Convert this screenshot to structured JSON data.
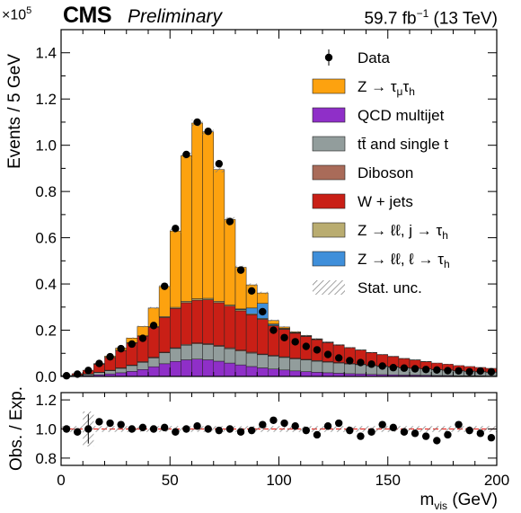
{
  "header": {
    "experiment": "CMS",
    "status": "Preliminary",
    "lumi": "59.7 fb",
    "lumi_exp": "−1",
    "energy": "(13 TeV)",
    "y_exponent_base": "×10",
    "y_exponent_power": "5"
  },
  "colors": {
    "ztt": "#fda20f",
    "qcd": "#8f2fc8",
    "ttbar": "#929d9c",
    "diboson": "#a96b59",
    "wjets": "#c91f16",
    "zll_jet": "#b9ac70",
    "zll_lep": "#3f8fda",
    "ratio_line": "#e8302a"
  },
  "chart_data": {
    "type": "bar",
    "stacked": true,
    "x_bin_width": 5,
    "x_bin_centers": [
      2.5,
      7.5,
      12.5,
      17.5,
      22.5,
      27.5,
      32.5,
      37.5,
      42.5,
      47.5,
      52.5,
      57.5,
      62.5,
      67.5,
      72.5,
      77.5,
      82.5,
      87.5,
      92.5,
      97.5,
      102.5,
      107.5,
      112.5,
      117.5,
      122.5,
      127.5,
      132.5,
      137.5,
      142.5,
      147.5,
      152.5,
      157.5,
      162.5,
      167.5,
      172.5,
      177.5,
      182.5,
      187.5,
      192.5,
      197.5
    ],
    "xlabel": "m",
    "xlabel_sub": "vis",
    "xlabel_unit": "(GeV)",
    "ylabel": "Events / 5 GeV",
    "xlim": [
      0,
      200
    ],
    "ylim": [
      0,
      1.5
    ],
    "y_scale_factor": 100000,
    "x_ticks": [
      "0",
      "50",
      "100",
      "150",
      "200"
    ],
    "x_tick_values": [
      0,
      50,
      100,
      150,
      200
    ],
    "y_ticks": [
      "0.0",
      "0.2",
      "0.4",
      "0.6",
      "0.8",
      "1.0",
      "1.2",
      "1.4"
    ],
    "y_tick_values": [
      0,
      0.2,
      0.4,
      0.6,
      0.8,
      1.0,
      1.2,
      1.4
    ],
    "series": [
      {
        "name": "QCD multijet",
        "key": "qcd",
        "values": [
          0.001,
          0.002,
          0.004,
          0.007,
          0.011,
          0.016,
          0.022,
          0.03,
          0.042,
          0.055,
          0.065,
          0.072,
          0.075,
          0.072,
          0.066,
          0.058,
          0.05,
          0.043,
          0.037,
          0.032,
          0.028,
          0.024,
          0.021,
          0.018,
          0.016,
          0.014,
          0.012,
          0.011,
          0.009,
          0.008,
          0.007,
          0.006,
          0.006,
          0.005,
          0.004,
          0.004,
          0.003,
          0.003,
          0.003,
          0.002
        ]
      },
      {
        "name": "tt̄ and single t",
        "key": "ttbar",
        "values": [
          0.001,
          0.003,
          0.006,
          0.01,
          0.014,
          0.019,
          0.025,
          0.031,
          0.038,
          0.047,
          0.056,
          0.063,
          0.066,
          0.066,
          0.064,
          0.062,
          0.06,
          0.058,
          0.057,
          0.056,
          0.054,
          0.052,
          0.05,
          0.048,
          0.046,
          0.044,
          0.042,
          0.04,
          0.037,
          0.035,
          0.033,
          0.031,
          0.029,
          0.027,
          0.025,
          0.023,
          0.021,
          0.019,
          0.017,
          0.016
        ]
      },
      {
        "name": "Diboson",
        "key": "diboson",
        "values": [
          0,
          0.001,
          0.001,
          0.001,
          0.002,
          0.002,
          0.002,
          0.003,
          0.003,
          0.003,
          0.003,
          0.004,
          0.004,
          0.004,
          0.004,
          0.004,
          0.004,
          0.004,
          0.003,
          0.003,
          0.003,
          0.003,
          0.003,
          0.003,
          0.002,
          0.002,
          0.002,
          0.002,
          0.002,
          0.002,
          0.002,
          0.001,
          0.001,
          0.001,
          0.001,
          0.001,
          0.001,
          0.001,
          0.001,
          0.001
        ]
      },
      {
        "name": "W + jets",
        "key": "wjets",
        "values": [
          0.002,
          0.006,
          0.016,
          0.035,
          0.055,
          0.075,
          0.095,
          0.11,
          0.13,
          0.15,
          0.17,
          0.18,
          0.185,
          0.19,
          0.185,
          0.18,
          0.17,
          0.162,
          0.15,
          0.128,
          0.118,
          0.108,
          0.099,
          0.09,
          0.082,
          0.075,
          0.068,
          0.061,
          0.055,
          0.049,
          0.044,
          0.039,
          0.035,
          0.031,
          0.028,
          0.025,
          0.022,
          0.02,
          0.018,
          0.016
        ]
      },
      {
        "name": "Z → ℓℓ, j → τh",
        "key": "zll_jet",
        "values": [
          0,
          0,
          0,
          0.001,
          0.001,
          0.001,
          0.002,
          0.002,
          0.003,
          0.004,
          0.005,
          0.006,
          0.006,
          0.006,
          0.006,
          0.005,
          0.005,
          0.004,
          0.004,
          0.003,
          0.003,
          0.002,
          0.002,
          0.002,
          0.002,
          0.001,
          0.001,
          0.001,
          0.001,
          0.001,
          0.001,
          0.001,
          0.001,
          0.001,
          0,
          0,
          0,
          0,
          0,
          0
        ]
      },
      {
        "name": "Z → ℓℓ, ℓ → τh",
        "key": "zll_lep",
        "values": [
          0,
          0,
          0,
          0,
          0,
          0,
          0,
          0,
          0,
          0,
          0,
          0,
          0,
          0,
          0,
          0,
          0.003,
          0.025,
          0.065,
          0.005,
          0.002,
          0.001,
          0,
          0,
          0,
          0,
          0,
          0,
          0,
          0,
          0,
          0,
          0,
          0,
          0,
          0,
          0,
          0,
          0,
          0
        ]
      },
      {
        "name": "Z → τμτh",
        "key": "ztt",
        "values": [
          0,
          0,
          0,
          0.002,
          0.005,
          0.01,
          0.02,
          0.04,
          0.08,
          0.13,
          0.33,
          0.63,
          0.76,
          0.72,
          0.57,
          0.37,
          0.18,
          0.1,
          0.045,
          0.015,
          0.006,
          0.003,
          0.002,
          0.002,
          0.001,
          0.001,
          0,
          0,
          0,
          0,
          0,
          0,
          0,
          0,
          0,
          0,
          0,
          0,
          0,
          0
        ]
      }
    ],
    "data": {
      "name": "Data",
      "values": [
        0.003,
        0.01,
        0.026,
        0.056,
        0.085,
        0.12,
        0.14,
        0.165,
        0.22,
        0.39,
        0.64,
        0.96,
        1.1,
        1.06,
        0.92,
        0.67,
        0.46,
        0.37,
        0.28,
        0.2,
        0.168,
        0.15,
        0.13,
        0.115,
        0.095,
        0.08,
        0.068,
        0.06,
        0.053,
        0.045,
        0.038,
        0.036,
        0.033,
        0.03,
        0.028,
        0.025,
        0.024,
        0.02,
        0.023,
        0.02
      ],
      "ratio": [
        1.0,
        0.98,
        1.0,
        1.05,
        1.04,
        1.03,
        1.0,
        1.01,
        1.0,
        1.01,
        0.98,
        1.0,
        1.02,
        1.0,
        0.99,
        1.0,
        0.98,
        0.99,
        1.03,
        1.06,
        1.04,
        1.02,
        0.99,
        0.96,
        1.02,
        1.04,
        0.99,
        0.95,
        0.98,
        1.03,
        1.01,
        0.98,
        0.97,
        0.95,
        0.92,
        0.96,
        1.03,
        0.99,
        0.97,
        0.94
      ]
    },
    "legend": {
      "placement": "top-right",
      "entries": [
        {
          "label": "Data",
          "kind": "marker"
        },
        {
          "label": "Z  → τ",
          "sub": "μ",
          "label2": "τ",
          "sub2": "h",
          "key": "ztt"
        },
        {
          "label": "QCD multijet",
          "key": "qcd"
        },
        {
          "label": "tt̄ and single t",
          "key": "ttbar"
        },
        {
          "label": "Diboson",
          "key": "diboson"
        },
        {
          "label": "W  +  jets",
          "key": "wjets"
        },
        {
          "label": "Z → ℓℓ, j → τ",
          "sub": "h",
          "key": "zll_jet"
        },
        {
          "label": "Z  → ℓℓ, ℓ → τ",
          "sub": "h",
          "key": "zll_lep"
        },
        {
          "label": "Stat. unc.",
          "kind": "hatch"
        }
      ]
    },
    "ratio_panel": {
      "ylabel": "Obs. / Exp.",
      "ylim": [
        0.75,
        1.25
      ],
      "y_ticks": [
        "0.8",
        "1.0",
        "1.2"
      ],
      "y_tick_values": [
        0.8,
        1.0,
        1.2
      ]
    }
  }
}
